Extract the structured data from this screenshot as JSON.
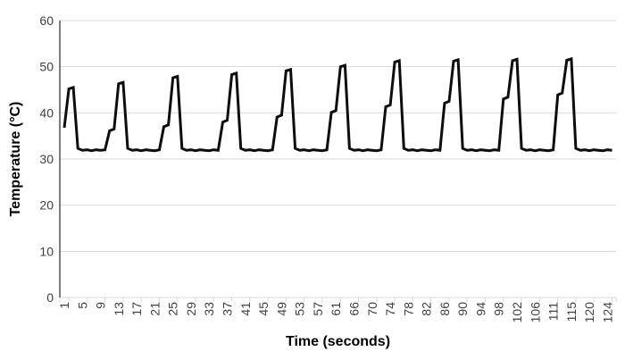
{
  "chart_data": {
    "type": "line",
    "title": "",
    "xlabel": "Time (seconds)",
    "ylabel": "Temperature (°C)",
    "ylim": [
      0,
      60
    ],
    "yticks": [
      0,
      10,
      20,
      30,
      40,
      50,
      60
    ],
    "x_label_every": 4,
    "grid": "horizontal",
    "legend": "none",
    "line_color": "#0d0d0d",
    "line_width": 3,
    "grid_color": "#d9d9d9",
    "axis_color": "#262626",
    "tick_label_color": "#404040",
    "x_tick_labels_shown": [
      "1",
      "5",
      "9",
      "13",
      "17",
      "21",
      "25",
      "29",
      "33",
      "37",
      "41",
      "45",
      "49",
      "53",
      "57",
      "61",
      "66",
      "70",
      "74",
      "78",
      "82",
      "86",
      "90",
      "94",
      "98",
      "102",
      "106",
      "111",
      "115",
      "120"
    ],
    "x": [
      1,
      2,
      3,
      4,
      5,
      6,
      7,
      8,
      9,
      10,
      11,
      12,
      13,
      14,
      15,
      16,
      17,
      18,
      19,
      20,
      21,
      22,
      23,
      24,
      25,
      26,
      27,
      28,
      29,
      30,
      31,
      32,
      33,
      34,
      35,
      36,
      37,
      38,
      39,
      40,
      41,
      42,
      43,
      44,
      45,
      46,
      47,
      48,
      49,
      50,
      51,
      52,
      53,
      54,
      55,
      56,
      57,
      58,
      59,
      60,
      61,
      63,
      64,
      65,
      66,
      67,
      68,
      69,
      70,
      71,
      72,
      73,
      74,
      75,
      76,
      77,
      78,
      79,
      80,
      81,
      82,
      83,
      84,
      85,
      86,
      87,
      88,
      89,
      90,
      91,
      92,
      93,
      94,
      95,
      96,
      97,
      98,
      99,
      100,
      101,
      102,
      103,
      104,
      105,
      106,
      107,
      108,
      109,
      111,
      112,
      113,
      114,
      115,
      116,
      117,
      118,
      120,
      121,
      122,
      123,
      124,
      125
    ],
    "y": [
      36.8,
      45.2,
      45.5,
      32.3,
      31.9,
      32,
      31.8,
      32,
      31.9,
      32,
      36.1,
      36.5,
      46.3,
      46.6,
      32.3,
      31.9,
      32,
      31.8,
      32,
      31.9,
      31.8,
      32,
      37,
      37.4,
      47.6,
      47.9,
      32.3,
      31.9,
      32,
      31.8,
      32,
      31.9,
      31.8,
      32,
      31.9,
      38,
      38.4,
      48.3,
      48.6,
      32.3,
      31.9,
      32,
      31.8,
      32,
      31.9,
      31.8,
      32,
      39.1,
      39.5,
      49.1,
      49.4,
      32.3,
      31.9,
      32,
      31.8,
      32,
      31.9,
      31.8,
      32,
      40.1,
      40.5,
      50,
      50.3,
      32.3,
      31.9,
      32,
      31.8,
      32,
      31.9,
      31.8,
      32,
      41.3,
      41.7,
      51,
      51.3,
      32.3,
      31.9,
      32,
      31.8,
      32,
      31.9,
      31.8,
      32,
      31.9,
      42.1,
      42.5,
      51.2,
      51.5,
      32.3,
      31.9,
      32,
      31.8,
      32,
      31.9,
      31.8,
      32,
      31.9,
      43,
      43.4,
      51.3,
      51.6,
      32.3,
      31.9,
      32,
      31.8,
      32,
      31.9,
      31.8,
      32,
      43.9,
      44.3,
      51.4,
      51.7,
      32.3,
      31.9,
      32,
      31.8,
      32,
      31.9,
      31.8,
      32,
      31.9
    ]
  }
}
